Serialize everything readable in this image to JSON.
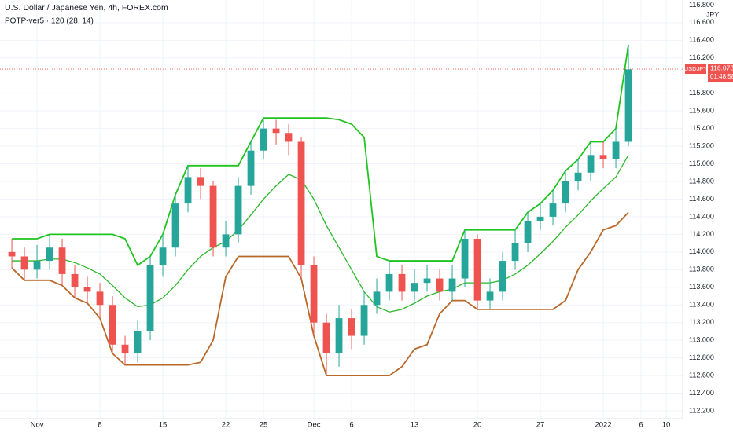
{
  "chart_data": {
    "type": "candlestick",
    "title": "U.S. Dollar / Japanese Yen, 4h, FOREX.com",
    "subtitle": "POTP-ver5 · 120 (28, 14)",
    "currency": "JPY",
    "symbol": "USDJPY",
    "last_price": 116.073,
    "countdown": "01:48:58",
    "price_line_color": "#ef5350",
    "up_color": "#26a69a",
    "down_color": "#ef5350",
    "grid": true,
    "ylim": [
      112.111,
      116.857
    ],
    "xlim": [
      -2.94,
      51.31
    ],
    "yticks": [
      {
        "value": 112.2,
        "label": "112.200"
      },
      {
        "value": 112.4,
        "label": "112.400"
      },
      {
        "value": 112.6,
        "label": "112.600"
      },
      {
        "value": 112.8,
        "label": "112.800"
      },
      {
        "value": 113.0,
        "label": "113.000"
      },
      {
        "value": 113.2,
        "label": "113.200"
      },
      {
        "value": 113.4,
        "label": "113.400"
      },
      {
        "value": 113.6,
        "label": "113.600"
      },
      {
        "value": 113.8,
        "label": "113.800"
      },
      {
        "value": 114.0,
        "label": "114.000"
      },
      {
        "value": 114.2,
        "label": "114.200"
      },
      {
        "value": 114.4,
        "label": "114.400"
      },
      {
        "value": 114.6,
        "label": "114.600"
      },
      {
        "value": 114.8,
        "label": "114.800"
      },
      {
        "value": 115.0,
        "label": "115.000"
      },
      {
        "value": 115.2,
        "label": "115.200"
      },
      {
        "value": 115.4,
        "label": "115.400"
      },
      {
        "value": 115.6,
        "label": "115.600"
      },
      {
        "value": 115.8,
        "label": "115.800"
      },
      {
        "value": 116.2,
        "label": "116.200"
      },
      {
        "value": 116.4,
        "label": "116.400"
      },
      {
        "value": 116.6,
        "label": "116.600"
      },
      {
        "value": 116.8,
        "label": "116.800"
      }
    ],
    "xticks": [
      {
        "value": 0,
        "label": "Nov"
      },
      {
        "value": 5,
        "label": "8"
      },
      {
        "value": 10,
        "label": "15"
      },
      {
        "value": 15,
        "label": "22"
      },
      {
        "value": 18,
        "label": "25"
      },
      {
        "value": 22,
        "label": "Dec"
      },
      {
        "value": 25,
        "label": "6"
      },
      {
        "value": 30,
        "label": "13"
      },
      {
        "value": 35,
        "label": "20"
      },
      {
        "value": 40,
        "label": "27"
      },
      {
        "value": 45,
        "label": "2022"
      },
      {
        "value": 48,
        "label": "6"
      },
      {
        "value": 50,
        "label": "10"
      }
    ],
    "x": [
      -2,
      -1,
      0,
      1,
      2,
      3,
      4,
      5,
      6,
      7,
      8,
      9,
      10,
      11,
      12,
      13,
      14,
      15,
      16,
      17,
      18,
      19,
      20,
      21,
      22,
      23,
      24,
      25,
      26,
      27,
      28,
      29,
      30,
      31,
      32,
      33,
      34,
      35,
      36,
      37,
      38,
      39,
      40,
      41,
      42,
      43,
      44,
      45,
      46,
      47
    ],
    "open": [
      114.0,
      113.95,
      113.8,
      113.9,
      114.05,
      113.75,
      113.6,
      113.55,
      113.4,
      112.95,
      112.85,
      113.1,
      113.85,
      114.05,
      114.55,
      114.85,
      114.75,
      114.05,
      114.2,
      114.75,
      115.15,
      115.4,
      115.35,
      115.25,
      113.85,
      113.2,
      112.85,
      113.25,
      113.05,
      113.4,
      113.55,
      113.75,
      113.55,
      113.65,
      113.7,
      113.55,
      113.7,
      114.15,
      113.45,
      113.55,
      113.9,
      114.1,
      114.35,
      114.4,
      114.55,
      114.8,
      114.9,
      115.1,
      115.05,
      115.25
    ],
    "high": [
      114.15,
      114.05,
      114.08,
      114.2,
      114.15,
      113.85,
      113.72,
      113.65,
      113.5,
      113.05,
      113.22,
      113.95,
      114.2,
      114.65,
      114.98,
      114.95,
      114.8,
      114.35,
      114.85,
      115.25,
      115.52,
      115.5,
      115.45,
      115.3,
      113.95,
      113.3,
      113.4,
      113.35,
      113.55,
      113.7,
      113.9,
      113.85,
      113.8,
      113.85,
      113.8,
      113.85,
      114.25,
      114.2,
      113.7,
      114.0,
      114.25,
      114.45,
      114.55,
      114.7,
      114.92,
      115.05,
      115.25,
      115.25,
      115.4,
      116.35
    ],
    "low": [
      113.82,
      113.68,
      113.7,
      113.8,
      113.62,
      113.48,
      113.42,
      113.25,
      112.85,
      112.72,
      112.75,
      113.0,
      113.72,
      113.95,
      114.45,
      114.6,
      113.95,
      113.95,
      114.1,
      114.65,
      115.05,
      115.22,
      115.1,
      113.7,
      113.05,
      112.6,
      112.7,
      112.9,
      112.95,
      113.3,
      113.45,
      113.45,
      113.45,
      113.55,
      113.45,
      113.45,
      113.6,
      113.35,
      113.35,
      113.45,
      113.8,
      114.0,
      114.25,
      114.3,
      114.45,
      114.7,
      114.8,
      114.95,
      114.95,
      115.2
    ],
    "close": [
      113.95,
      113.8,
      113.9,
      114.05,
      113.75,
      113.6,
      113.55,
      113.4,
      112.95,
      112.85,
      113.1,
      113.85,
      114.05,
      114.55,
      114.85,
      114.75,
      114.05,
      114.2,
      114.75,
      115.15,
      115.4,
      115.35,
      115.25,
      113.85,
      113.2,
      112.85,
      113.25,
      113.05,
      113.4,
      113.55,
      113.75,
      113.55,
      113.65,
      113.7,
      113.55,
      113.7,
      114.15,
      113.45,
      113.55,
      113.9,
      114.1,
      114.35,
      114.4,
      114.55,
      114.8,
      114.9,
      115.1,
      115.05,
      115.25,
      116.07
    ],
    "overlays": [
      {
        "color": "#1fc41f",
        "values": [
          114.15,
          114.15,
          114.15,
          114.2,
          114.2,
          114.2,
          114.2,
          114.2,
          114.2,
          114.15,
          113.85,
          113.95,
          114.2,
          114.65,
          114.98,
          114.98,
          114.98,
          114.98,
          114.98,
          115.25,
          115.52,
          115.52,
          115.52,
          115.52,
          115.52,
          115.52,
          115.5,
          115.45,
          115.3,
          113.95,
          113.9,
          113.9,
          113.9,
          113.9,
          113.9,
          113.9,
          114.25,
          114.25,
          114.25,
          114.25,
          114.25,
          114.45,
          114.55,
          114.7,
          114.92,
          115.05,
          115.25,
          115.25,
          115.4,
          116.35
        ]
      },
      {
        "color": "#b8692a",
        "values": [
          113.82,
          113.68,
          113.68,
          113.68,
          113.62,
          113.48,
          113.42,
          113.25,
          112.85,
          112.72,
          112.72,
          112.72,
          112.72,
          112.72,
          112.72,
          112.75,
          113.0,
          113.72,
          113.95,
          113.95,
          113.95,
          113.95,
          113.95,
          113.7,
          113.05,
          112.6,
          112.6,
          112.6,
          112.6,
          112.6,
          112.6,
          112.7,
          112.9,
          112.95,
          113.3,
          113.45,
          113.45,
          113.35,
          113.35,
          113.35,
          113.35,
          113.35,
          113.35,
          113.35,
          113.45,
          113.8,
          114.0,
          114.25,
          114.3,
          114.45
        ]
      },
      {
        "color": "#2bb82b",
        "values": [
          113.9,
          113.9,
          113.9,
          113.92,
          113.92,
          113.88,
          113.82,
          113.75,
          113.62,
          113.48,
          113.38,
          113.4,
          113.48,
          113.62,
          113.8,
          113.95,
          114.05,
          114.12,
          114.25,
          114.42,
          114.6,
          114.75,
          114.88,
          114.82,
          114.6,
          114.3,
          114.05,
          113.8,
          113.55,
          113.38,
          113.32,
          113.35,
          113.42,
          113.5,
          113.55,
          113.58,
          113.65,
          113.65,
          113.65,
          113.68,
          113.75,
          113.85,
          113.98,
          114.12,
          114.28,
          114.42,
          114.58,
          114.72,
          114.85,
          115.1
        ]
      }
    ]
  }
}
